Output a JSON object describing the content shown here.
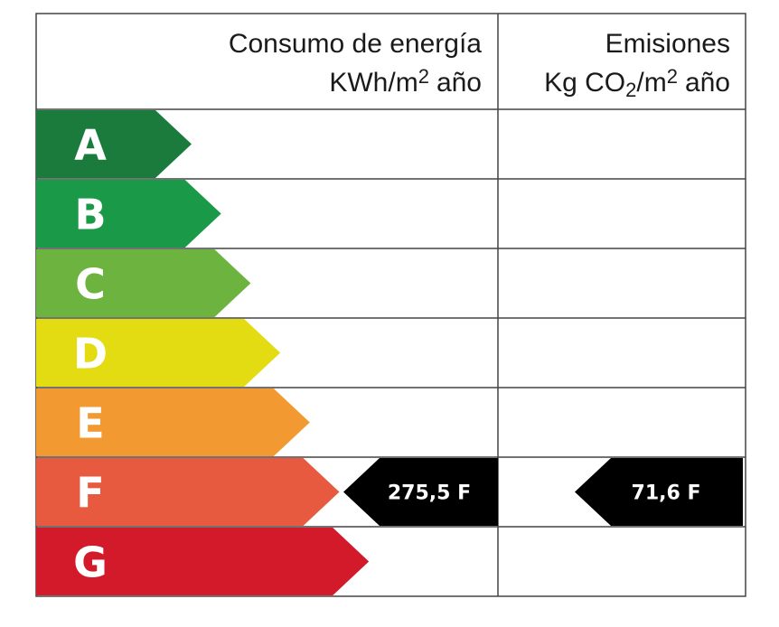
{
  "header": {
    "energy": {
      "title": "Consumo de energía",
      "unit": "KWh/m",
      "unit_sup": "2",
      "unit_suffix": "año"
    },
    "emissions": {
      "title": "Emisiones",
      "unit": "Kg CO",
      "unit_sub": "2",
      "unit_mid": "/m",
      "unit_sup": "2",
      "unit_suffix": "año"
    }
  },
  "ratings": [
    {
      "letter": "A",
      "color": "#1b7b3d"
    },
    {
      "letter": "B",
      "color": "#1a9a48"
    },
    {
      "letter": "C",
      "color": "#6cb33f"
    },
    {
      "letter": "D",
      "color": "#e3dc12"
    },
    {
      "letter": "E",
      "color": "#f29a31"
    },
    {
      "letter": "F",
      "color": "#e85a3f",
      "energy": "275,5 F",
      "emissions": "71,6 F"
    },
    {
      "letter": "G",
      "color": "#d21a2b"
    }
  ]
}
